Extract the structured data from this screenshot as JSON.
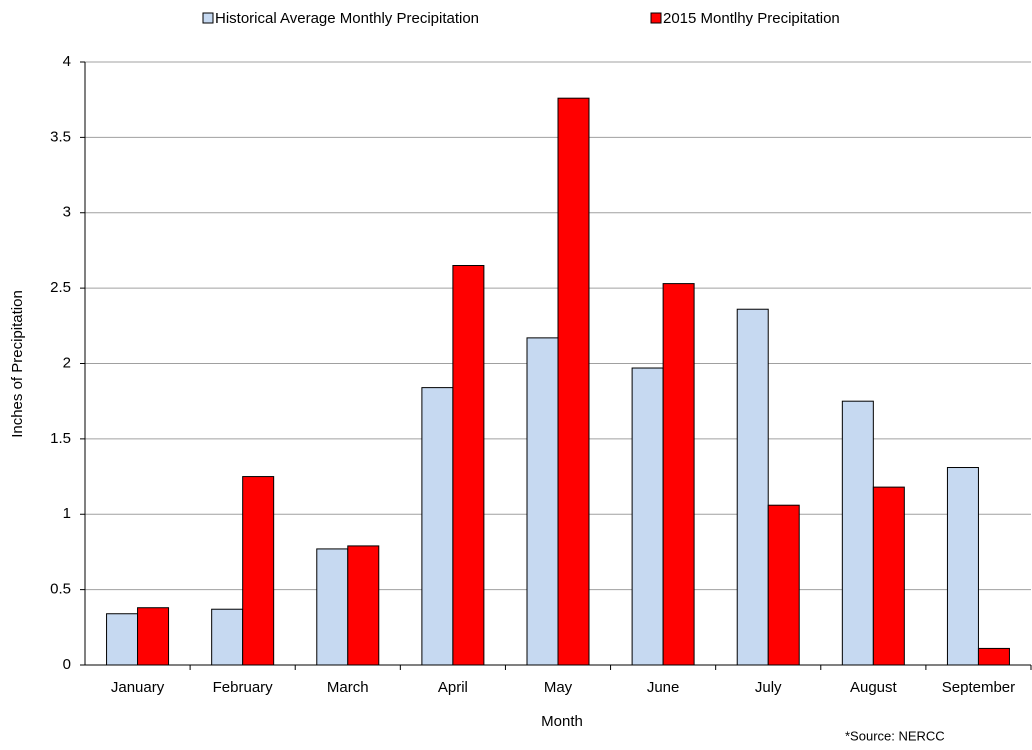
{
  "chart_data": {
    "type": "bar",
    "categories": [
      "January",
      "February",
      "March",
      "April",
      "May",
      "June",
      "July",
      "August",
      "September"
    ],
    "series": [
      {
        "name": "Historical Average Monthly Precipitation",
        "color": "#c6d9f1",
        "values": [
          0.34,
          0.37,
          0.77,
          1.84,
          2.17,
          1.97,
          2.36,
          1.75,
          1.31
        ]
      },
      {
        "name": "2015 Montlhy Precipitation",
        "color": "#ff0000",
        "values": [
          0.38,
          1.25,
          0.79,
          2.65,
          3.76,
          2.53,
          1.06,
          1.18,
          0.11
        ]
      }
    ],
    "x_label": "Month",
    "y_label": "Inches of Precipitation",
    "ylim": [
      0,
      4
    ],
    "yticks": [
      0,
      0.5,
      1,
      1.5,
      2,
      2.5,
      3,
      3.5,
      4
    ],
    "grid": true,
    "legend": "top",
    "annotation": "*Source: NERCC"
  }
}
